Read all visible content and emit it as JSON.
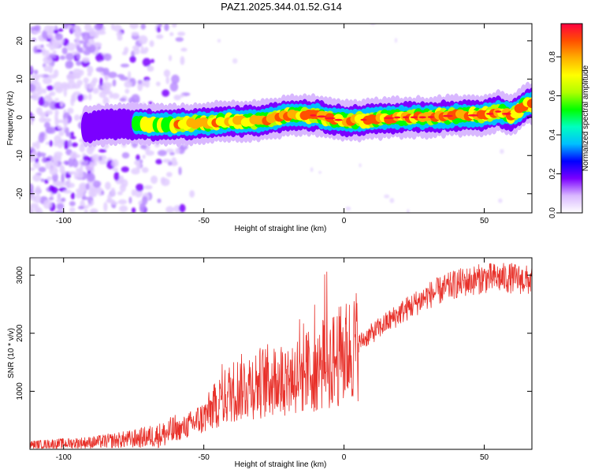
{
  "title": "PAZ1.2025.344.01.52.G14",
  "chart_data": [
    {
      "type": "heatmap",
      "name": "spectrogram",
      "xlabel": "Height of straight line (km)",
      "ylabel": "Frequency (Hz)",
      "xlim": [
        -112,
        67
      ],
      "ylim": [
        -25,
        24.5
      ],
      "xticks": [
        -100,
        -50,
        0,
        50
      ],
      "yticks": [
        -20,
        -10,
        0,
        10,
        20
      ],
      "colorbar": {
        "label": "Normalized spectral amplitude",
        "range": [
          0,
          0.97
        ],
        "ticks": [
          0.0,
          0.2,
          0.4,
          0.6,
          0.8
        ],
        "colors": [
          "#ffffff",
          "#d9b8ff",
          "#7b00ff",
          "#0000ff",
          "#00bfff",
          "#00ffc0",
          "#00ff00",
          "#b0ff00",
          "#ffff00",
          "#ffb000",
          "#ff5000",
          "#ff0040"
        ]
      },
      "ridge": {
        "x": [
          -90,
          -80,
          -70,
          -60,
          -50,
          -40,
          -30,
          -20,
          -10,
          0,
          10,
          20,
          30,
          40,
          50,
          55,
          60,
          65,
          67
        ],
        "y": [
          -2.5,
          -1.5,
          -2.0,
          -2.0,
          -1.5,
          -1.0,
          -1.0,
          0.5,
          0.5,
          -1.0,
          -0.5,
          0.0,
          0.0,
          0.5,
          0.5,
          1.5,
          0.5,
          3.5,
          3.5
        ]
      }
    },
    {
      "type": "line",
      "name": "snr",
      "xlabel": "Height of straight line (km)",
      "ylabel": "SNR (10 * v/v)",
      "xlim": [
        -112,
        67
      ],
      "ylim": [
        0,
        3300
      ],
      "xticks": [
        -100,
        -50,
        0,
        50
      ],
      "yticks": [
        1000,
        2000,
        3000
      ],
      "color": "#e8312a",
      "envelope": {
        "x": [
          -112,
          -90,
          -75,
          -65,
          -58,
          -50,
          -45,
          -40,
          -35,
          -30,
          -25,
          -20,
          -15,
          -10,
          -5,
          0,
          10,
          20,
          30,
          40,
          50,
          60,
          67
        ],
        "y": [
          80,
          120,
          180,
          250,
          350,
          550,
          800,
          1000,
          1100,
          1150,
          1200,
          1250,
          1300,
          1400,
          1500,
          1650,
          2000,
          2350,
          2650,
          2850,
          2950,
          2950,
          2900
        ]
      }
    }
  ]
}
